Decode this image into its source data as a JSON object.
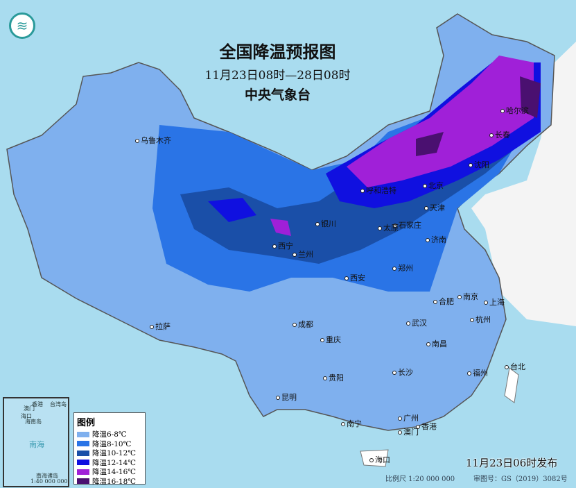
{
  "header": {
    "title": "全国降温预报图",
    "period": "11月23日08时—28日08时",
    "issuer": "中央气象台"
  },
  "legend": {
    "title": "图例",
    "items": [
      {
        "label": "降温6-8℃",
        "color": "#7fb0ee"
      },
      {
        "label": "降温8-10℃",
        "color": "#2a74e6"
      },
      {
        "label": "降温10-12℃",
        "color": "#1a4fa8"
      },
      {
        "label": "降温12-14℃",
        "color": "#1010e0"
      },
      {
        "label": "降温14-16℃",
        "color": "#a020d8"
      },
      {
        "label": "降温16-18℃",
        "color": "#4a1070"
      }
    ]
  },
  "cities": [
    "乌鲁木齐",
    "拉萨",
    "西宁",
    "兰州",
    "银川",
    "呼和浩特",
    "北京",
    "天津",
    "石家庄",
    "太原",
    "济南",
    "郑州",
    "西安",
    "成都",
    "重庆",
    "贵阳",
    "昆明",
    "南宁",
    "广州",
    "香港",
    "澳门",
    "海口",
    "长沙",
    "武汉",
    "南昌",
    "合肥",
    "南京",
    "上海",
    "杭州",
    "福州",
    "台北",
    "哈尔滨",
    "长春",
    "沈阳"
  ],
  "inset": {
    "labels": [
      "香港",
      "澳门",
      "台湾岛",
      "海口",
      "海南岛",
      "南海",
      "南海诸岛"
    ],
    "scale": "1:40 000 000"
  },
  "footer": {
    "published": "11月23日06时发布",
    "scale": "比例尺 1:20 000 000",
    "map_no": "审图号：GS（2019）3082号"
  },
  "colors": {
    "sea": "#a9dcef",
    "land_outside": "#ffffff"
  }
}
